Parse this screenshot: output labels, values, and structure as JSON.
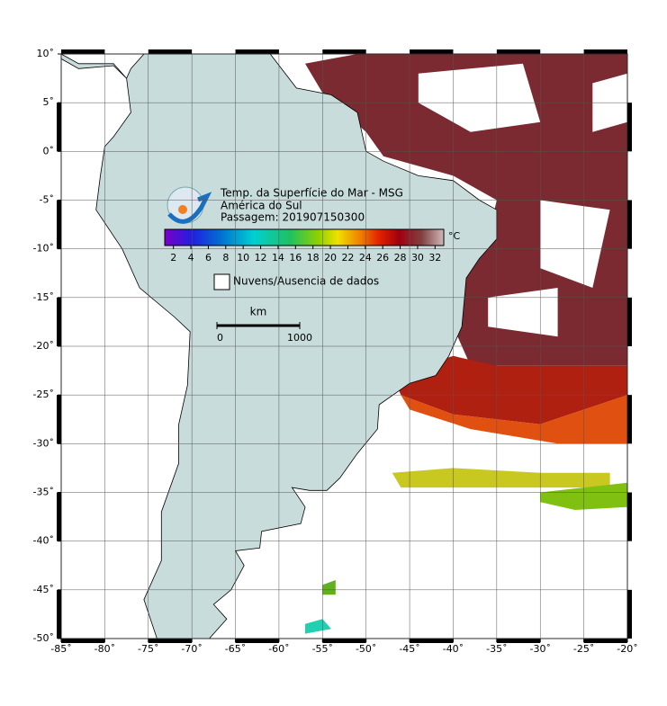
{
  "title": "Temp. da Superfície do Mar - MSG",
  "subtitle": "América do Sul",
  "pass": "Passagem: 201907150300",
  "colorbar": {
    "unit": "°C",
    "range": [
      1,
      33
    ],
    "ticks": [
      2,
      4,
      6,
      8,
      10,
      12,
      14,
      16,
      18,
      20,
      22,
      24,
      26,
      28,
      30,
      32
    ]
  },
  "legend": "Nuvens/Ausencia de dados",
  "scale_bar": {
    "unit": "km",
    "ticks": [
      0,
      1000
    ]
  },
  "axes": {
    "lon_lim": [
      -85,
      -20
    ],
    "lat_lim": [
      -50,
      10
    ],
    "lon_ticks": [
      {
        "value": -85,
        "label": "-85˚"
      },
      {
        "value": -80,
        "label": "-80˚"
      },
      {
        "value": -75,
        "label": "-75˚"
      },
      {
        "value": -70,
        "label": "-70˚"
      },
      {
        "value": -65,
        "label": "-65˚"
      },
      {
        "value": -60,
        "label": "-60˚"
      },
      {
        "value": -55,
        "label": "-55˚"
      },
      {
        "value": -50,
        "label": "-50˚"
      },
      {
        "value": -45,
        "label": "-45˚"
      },
      {
        "value": -40,
        "label": "-40˚"
      },
      {
        "value": -35,
        "label": "-35˚"
      },
      {
        "value": -30,
        "label": "-30˚"
      },
      {
        "value": -25,
        "label": "-25˚"
      },
      {
        "value": -20,
        "label": "-20˚"
      }
    ],
    "lat_ticks": [
      {
        "value": 10,
        "label": "10˚"
      },
      {
        "value": 5,
        "label": "5˚"
      },
      {
        "value": 0,
        "label": "0˚"
      },
      {
        "value": -5,
        "label": "-5˚"
      },
      {
        "value": -10,
        "label": "-10˚"
      },
      {
        "value": -15,
        "label": "-15˚"
      },
      {
        "value": -20,
        "label": "-20˚"
      },
      {
        "value": -25,
        "label": "-25˚"
      },
      {
        "value": -30,
        "label": "-30˚"
      },
      {
        "value": -35,
        "label": "-35˚"
      },
      {
        "value": -40,
        "label": "-40˚"
      },
      {
        "value": -45,
        "label": "-45˚"
      },
      {
        "value": -50,
        "label": "-50˚"
      }
    ]
  }
}
